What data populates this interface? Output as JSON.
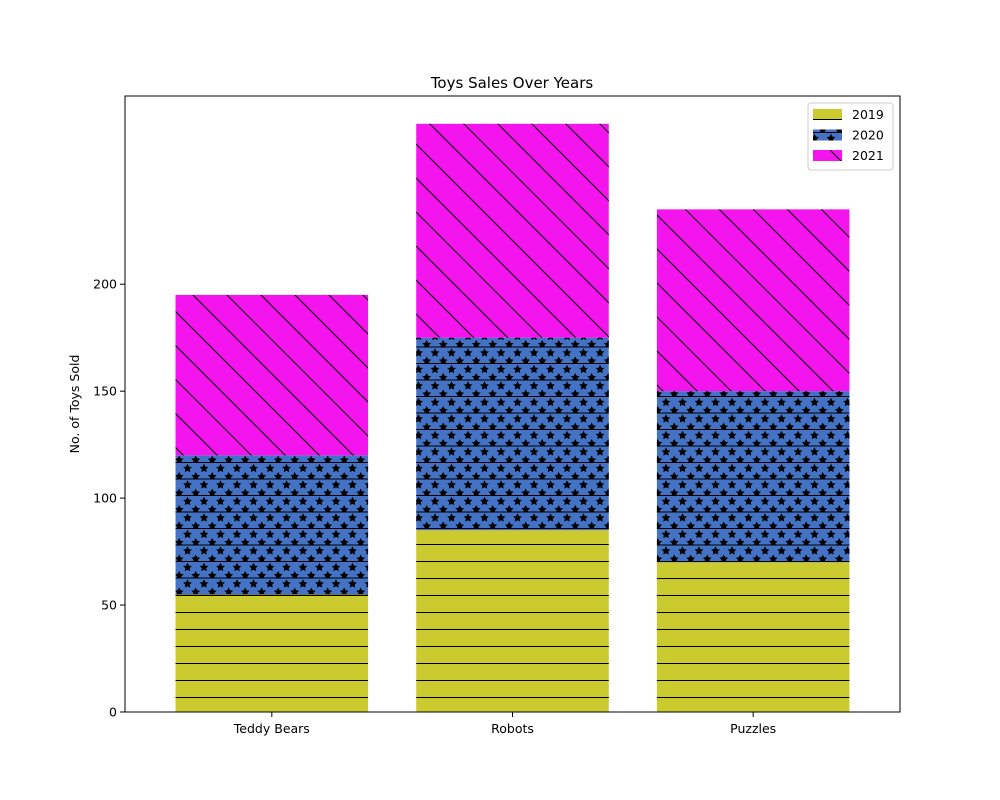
{
  "chart_data": {
    "type": "bar",
    "stacked": true,
    "title": "Toys Sales Over Years",
    "xlabel": "",
    "ylabel": "No. of Toys Sold",
    "categories": [
      "Teddy Bears",
      "Robots",
      "Puzzles"
    ],
    "series": [
      {
        "name": "2019",
        "values": [
          55,
          85,
          70
        ],
        "color": "#cbcb30",
        "hatch": "horizontal-lines"
      },
      {
        "name": "2020",
        "values": [
          65,
          90,
          80
        ],
        "color": "#4472c4",
        "hatch": "stars"
      },
      {
        "name": "2021",
        "values": [
          75,
          100,
          85
        ],
        "color": "#f414ee",
        "hatch": "diagonal-lines"
      }
    ],
    "ylim": [
      0,
      288
    ],
    "yticks": [
      0,
      50,
      100,
      150,
      200
    ],
    "grid": false,
    "legend_position": "top-right"
  }
}
